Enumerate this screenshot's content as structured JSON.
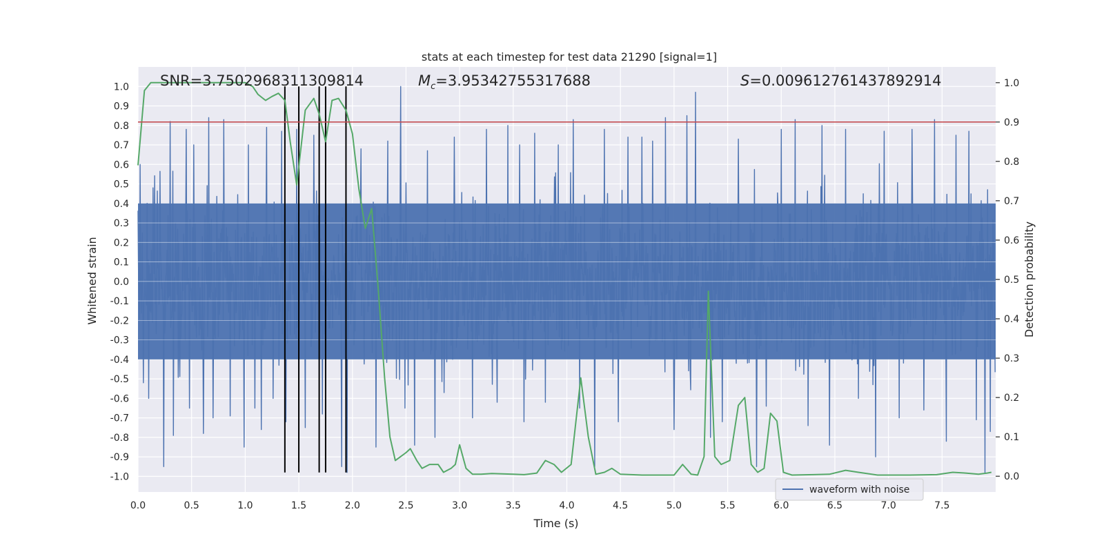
{
  "chart_data": {
    "type": "line",
    "title": "stats at each timestep for test data 21290 [signal=1]",
    "xlabel": "Time (s)",
    "ylabel_left": "Whitened strain",
    "ylabel_right": "Detection probability",
    "xlim": [
      0.0,
      8.0
    ],
    "ylim_left": [
      -1.08,
      1.1
    ],
    "ylim_right": [
      -0.04,
      1.04
    ],
    "x_ticks": [
      "0.0",
      "0.5",
      "1.0",
      "1.5",
      "2.0",
      "2.5",
      "3.0",
      "3.5",
      "4.0",
      "4.5",
      "5.0",
      "5.5",
      "6.0",
      "6.5",
      "7.0",
      "7.5"
    ],
    "x_tick_values": [
      0.0,
      0.5,
      1.0,
      1.5,
      2.0,
      2.5,
      3.0,
      3.5,
      4.0,
      4.5,
      5.0,
      5.5,
      6.0,
      6.5,
      7.0,
      7.5
    ],
    "y_left_ticks": [
      "1.0",
      "0.9",
      "0.8",
      "0.7",
      "0.6",
      "0.5",
      "0.4",
      "0.3",
      "0.2",
      "0.1",
      "0.0",
      "-0.1",
      "-0.2",
      "-0.3",
      "-0.4",
      "-0.5",
      "-0.6",
      "-0.7",
      "-0.8",
      "-0.9",
      "-1.0"
    ],
    "y_left_tick_values": [
      1.0,
      0.9,
      0.8,
      0.7,
      0.6,
      0.5,
      0.4,
      0.3,
      0.2,
      0.1,
      0.0,
      -0.1,
      -0.2,
      -0.3,
      -0.4,
      -0.5,
      -0.6,
      -0.7,
      -0.8,
      -0.9,
      -1.0
    ],
    "y_right_ticks": [
      "1.0",
      "0.9",
      "0.8",
      "0.7",
      "0.6",
      "0.5",
      "0.4",
      "0.3",
      "0.2",
      "0.1",
      "0.0"
    ],
    "y_right_tick_values": [
      1.0,
      0.9,
      0.8,
      0.7,
      0.6,
      0.5,
      0.4,
      0.3,
      0.2,
      0.1,
      0.0
    ],
    "annotations": {
      "snr": "SNR=3.7502968311309814",
      "mc_symbol": "M",
      "mc_sub": "c",
      "mc_value": "=3.95342755317688",
      "s_symbol": "S",
      "s_value": "=0.009612761437892914"
    },
    "threshold": {
      "value": 0.9,
      "axis": "right",
      "color": "#c44e52"
    },
    "vertical_markers": [
      1.37,
      1.5,
      1.69,
      1.75,
      1.94
    ],
    "vertical_marker_range": [
      -0.98,
      1.0
    ],
    "grid": true,
    "legend_position": "lower-right",
    "legend": [
      {
        "label": "waveform with noise",
        "color": "#4c72b0"
      }
    ],
    "colors": {
      "waveform": "#4c72b0",
      "probability": "#55a868",
      "threshold": "#c44e52",
      "markers": "#000000",
      "plot_background": "#eaeaf2",
      "grid": "#ffffff"
    },
    "series": [
      {
        "name": "waveform with noise",
        "axis": "left",
        "color": "#4c72b0",
        "style": "dense-noise",
        "sample_rate_hz": 200,
        "envelope_core": 0.4,
        "spikes": [
          {
            "x": 0.02,
            "y": 0.6
          },
          {
            "x": 0.05,
            "y": -0.52
          },
          {
            "x": 0.1,
            "y": -0.6
          },
          {
            "x": 0.14,
            "y": 0.48
          },
          {
            "x": 0.24,
            "y": -0.95
          },
          {
            "x": 0.3,
            "y": 0.82
          },
          {
            "x": 0.33,
            "y": -0.79
          },
          {
            "x": 0.45,
            "y": 0.78
          },
          {
            "x": 0.48,
            "y": -0.65
          },
          {
            "x": 0.52,
            "y": 0.7
          },
          {
            "x": 0.61,
            "y": -0.78
          },
          {
            "x": 0.66,
            "y": 0.84
          },
          {
            "x": 0.7,
            "y": -0.7
          },
          {
            "x": 0.8,
            "y": 0.83
          },
          {
            "x": 0.86,
            "y": -0.69
          },
          {
            "x": 0.99,
            "y": -0.85
          },
          {
            "x": 1.03,
            "y": 0.7
          },
          {
            "x": 1.09,
            "y": -0.65
          },
          {
            "x": 1.15,
            "y": -0.76
          },
          {
            "x": 1.2,
            "y": 0.79
          },
          {
            "x": 1.26,
            "y": -0.6
          },
          {
            "x": 1.34,
            "y": 0.77
          },
          {
            "x": 1.38,
            "y": -0.72
          },
          {
            "x": 1.48,
            "y": 0.78
          },
          {
            "x": 1.56,
            "y": -0.75
          },
          {
            "x": 1.64,
            "y": 0.75
          },
          {
            "x": 1.72,
            "y": -0.68
          },
          {
            "x": 1.9,
            "y": -0.95
          },
          {
            "x": 1.95,
            "y": -0.98
          },
          {
            "x": 2.08,
            "y": 0.68
          },
          {
            "x": 2.22,
            "y": -0.85
          },
          {
            "x": 2.33,
            "y": 0.72
          },
          {
            "x": 2.45,
            "y": 1.0
          },
          {
            "x": 2.49,
            "y": -0.65
          },
          {
            "x": 2.58,
            "y": -0.84
          },
          {
            "x": 2.7,
            "y": 0.67
          },
          {
            "x": 2.77,
            "y": -0.8
          },
          {
            "x": 2.95,
            "y": 0.74
          },
          {
            "x": 3.12,
            "y": -0.7
          },
          {
            "x": 3.25,
            "y": 0.78
          },
          {
            "x": 3.35,
            "y": -0.62
          },
          {
            "x": 3.45,
            "y": 0.8
          },
          {
            "x": 3.6,
            "y": -0.72
          },
          {
            "x": 3.7,
            "y": 0.76
          },
          {
            "x": 3.8,
            "y": -0.62
          },
          {
            "x": 3.92,
            "y": 0.7
          },
          {
            "x": 4.06,
            "y": 0.83
          },
          {
            "x": 4.12,
            "y": -0.65
          },
          {
            "x": 4.26,
            "y": -0.95
          },
          {
            "x": 4.35,
            "y": 0.78
          },
          {
            "x": 4.48,
            "y": -0.72
          },
          {
            "x": 4.57,
            "y": 0.74
          },
          {
            "x": 4.7,
            "y": 0.74
          },
          {
            "x": 4.8,
            "y": 0.72
          },
          {
            "x": 4.92,
            "y": 0.84
          },
          {
            "x": 5.0,
            "y": -0.76
          },
          {
            "x": 5.12,
            "y": 0.85
          },
          {
            "x": 5.2,
            "y": 0.97
          },
          {
            "x": 5.34,
            "y": -0.8
          },
          {
            "x": 5.45,
            "y": -0.72
          },
          {
            "x": 5.6,
            "y": 0.73
          },
          {
            "x": 5.77,
            "y": -0.95
          },
          {
            "x": 5.86,
            "y": -0.64
          },
          {
            "x": 6.0,
            "y": 0.78
          },
          {
            "x": 6.13,
            "y": 0.83
          },
          {
            "x": 6.25,
            "y": -0.74
          },
          {
            "x": 6.38,
            "y": 0.8
          },
          {
            "x": 6.45,
            "y": -0.84
          },
          {
            "x": 6.6,
            "y": 0.78
          },
          {
            "x": 6.72,
            "y": -0.6
          },
          {
            "x": 6.88,
            "y": -0.9
          },
          {
            "x": 6.96,
            "y": 0.77
          },
          {
            "x": 7.1,
            "y": -0.7
          },
          {
            "x": 7.22,
            "y": 0.78
          },
          {
            "x": 7.33,
            "y": -0.66
          },
          {
            "x": 7.43,
            "y": 0.83
          },
          {
            "x": 7.54,
            "y": -0.82
          },
          {
            "x": 7.63,
            "y": 0.75
          },
          {
            "x": 7.75,
            "y": 0.77
          },
          {
            "x": 7.82,
            "y": -0.71
          },
          {
            "x": 7.9,
            "y": -0.98
          },
          {
            "x": 7.95,
            "y": -0.77
          }
        ]
      },
      {
        "name": "",
        "axis": "right",
        "color": "#55a868",
        "points": [
          [
            0.0,
            0.79
          ],
          [
            0.06,
            0.98
          ],
          [
            0.12,
            1.0
          ],
          [
            0.4,
            1.0
          ],
          [
            0.8,
            1.0
          ],
          [
            1.0,
            1.0
          ],
          [
            1.07,
            0.99
          ],
          [
            1.12,
            0.97
          ],
          [
            1.19,
            0.955
          ],
          [
            1.25,
            0.965
          ],
          [
            1.31,
            0.973
          ],
          [
            1.37,
            0.955
          ],
          [
            1.42,
            0.85
          ],
          [
            1.48,
            0.74
          ],
          [
            1.56,
            0.93
          ],
          [
            1.64,
            0.96
          ],
          [
            1.69,
            0.92
          ],
          [
            1.75,
            0.85
          ],
          [
            1.81,
            0.955
          ],
          [
            1.87,
            0.96
          ],
          [
            1.94,
            0.93
          ],
          [
            2.0,
            0.87
          ],
          [
            2.06,
            0.73
          ],
          [
            2.12,
            0.63
          ],
          [
            2.18,
            0.68
          ],
          [
            2.24,
            0.48
          ],
          [
            2.3,
            0.25
          ],
          [
            2.35,
            0.1
          ],
          [
            2.4,
            0.04
          ],
          [
            2.45,
            0.05
          ],
          [
            2.5,
            0.06
          ],
          [
            2.54,
            0.07
          ],
          [
            2.6,
            0.04
          ],
          [
            2.65,
            0.02
          ],
          [
            2.72,
            0.03
          ],
          [
            2.8,
            0.03
          ],
          [
            2.85,
            0.01
          ],
          [
            2.92,
            0.02
          ],
          [
            2.96,
            0.03
          ],
          [
            3.0,
            0.08
          ],
          [
            3.06,
            0.02
          ],
          [
            3.12,
            0.005
          ],
          [
            3.2,
            0.005
          ],
          [
            3.3,
            0.007
          ],
          [
            3.5,
            0.005
          ],
          [
            3.6,
            0.004
          ],
          [
            3.72,
            0.008
          ],
          [
            3.8,
            0.04
          ],
          [
            3.88,
            0.03
          ],
          [
            3.95,
            0.01
          ],
          [
            4.04,
            0.03
          ],
          [
            4.13,
            0.25
          ],
          [
            4.2,
            0.1
          ],
          [
            4.27,
            0.005
          ],
          [
            4.35,
            0.01
          ],
          [
            4.42,
            0.02
          ],
          [
            4.5,
            0.005
          ],
          [
            4.7,
            0.003
          ],
          [
            5.0,
            0.003
          ],
          [
            5.08,
            0.03
          ],
          [
            5.16,
            0.005
          ],
          [
            5.22,
            0.003
          ],
          [
            5.28,
            0.05
          ],
          [
            5.32,
            0.47
          ],
          [
            5.38,
            0.05
          ],
          [
            5.44,
            0.03
          ],
          [
            5.52,
            0.04
          ],
          [
            5.6,
            0.18
          ],
          [
            5.66,
            0.2
          ],
          [
            5.72,
            0.03
          ],
          [
            5.78,
            0.01
          ],
          [
            5.84,
            0.02
          ],
          [
            5.9,
            0.16
          ],
          [
            5.96,
            0.14
          ],
          [
            6.02,
            0.01
          ],
          [
            6.1,
            0.003
          ],
          [
            6.3,
            0.004
          ],
          [
            6.45,
            0.005
          ],
          [
            6.6,
            0.015
          ],
          [
            6.72,
            0.01
          ],
          [
            6.9,
            0.003
          ],
          [
            7.2,
            0.003
          ],
          [
            7.45,
            0.004
          ],
          [
            7.6,
            0.01
          ],
          [
            7.72,
            0.008
          ],
          [
            7.84,
            0.005
          ],
          [
            7.92,
            0.008
          ],
          [
            7.96,
            0.01
          ]
        ]
      }
    ]
  }
}
